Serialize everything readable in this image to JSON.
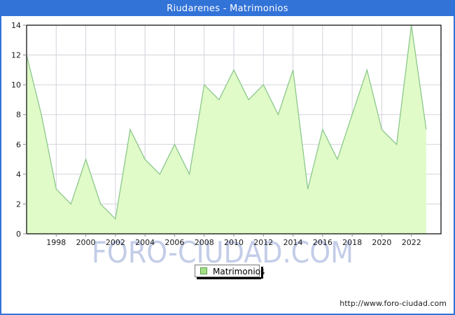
{
  "window": {
    "title": "Riudarenes - Matrimonios"
  },
  "watermark": "FORO-CIUDAD.COM",
  "legend": {
    "label": "Matrimonios"
  },
  "footer": {
    "url": "http://www.foro-ciudad.com"
  },
  "colors": {
    "frame_blue": "#3273d8",
    "title_text": "#ffffff",
    "area_fill": "#e0fac8",
    "line_green": "#8cc88c",
    "legend_swatch_fill": "#a5e287",
    "legend_swatch_border": "#58a044",
    "gridline": "#d2d2dc",
    "plot_border": "#000000",
    "tick": "#888888",
    "tick_label": "#1a1a1a",
    "watermark": "#c3cde8",
    "footer_text": "#222222"
  },
  "chart_data": {
    "type": "area",
    "title": "Riudarenes - Matrimonios",
    "series_name": "Matrimonios",
    "x": [
      1996,
      1997,
      1998,
      1999,
      2000,
      2001,
      2002,
      2003,
      2004,
      2005,
      2006,
      2007,
      2008,
      2009,
      2010,
      2011,
      2012,
      2013,
      2014,
      2015,
      2016,
      2017,
      2018,
      2019,
      2020,
      2021,
      2022,
      2023
    ],
    "values": [
      12,
      8,
      3,
      2,
      5,
      2,
      1,
      7,
      5,
      4,
      6,
      4,
      10,
      9,
      11,
      9,
      10,
      8,
      11,
      3,
      7,
      5,
      8,
      11,
      7,
      6,
      14,
      7
    ],
    "x_range": [
      1996,
      2024
    ],
    "xtick_years": [
      1998,
      2000,
      2002,
      2004,
      2006,
      2008,
      2010,
      2012,
      2014,
      2016,
      2018,
      2020,
      2022
    ],
    "ylim": [
      0,
      14
    ],
    "ytick_step": 2,
    "grid": true,
    "legend_position": "bottom-center",
    "xlabel": "",
    "ylabel": ""
  }
}
